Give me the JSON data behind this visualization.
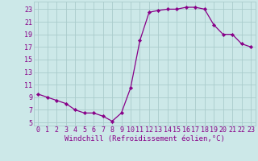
{
  "x": [
    0,
    1,
    2,
    3,
    4,
    5,
    6,
    7,
    8,
    9,
    10,
    11,
    12,
    13,
    14,
    15,
    16,
    17,
    18,
    19,
    20,
    21,
    22,
    23
  ],
  "y": [
    9.5,
    9.0,
    8.5,
    8.0,
    7.0,
    6.5,
    6.5,
    6.0,
    5.2,
    6.5,
    10.5,
    18.0,
    22.5,
    22.8,
    23.0,
    23.0,
    23.3,
    23.3,
    23.0,
    20.5,
    19.0,
    19.0,
    17.5,
    17.0
  ],
  "line_color": "#880088",
  "marker": "D",
  "marker_size": 2.2,
  "bg_color": "#cce8e8",
  "grid_color": "#aacccc",
  "xlabel": "Windchill (Refroidissement éolien,°C)",
  "ylabel_ticks": [
    5,
    7,
    9,
    11,
    13,
    15,
    17,
    19,
    21,
    23
  ],
  "xlabel_ticks": [
    0,
    1,
    2,
    3,
    4,
    5,
    6,
    7,
    8,
    9,
    10,
    11,
    12,
    13,
    14,
    15,
    16,
    17,
    18,
    19,
    20,
    21,
    22,
    23
  ],
  "xlim": [
    -0.5,
    23.5
  ],
  "ylim": [
    4.5,
    24.2
  ],
  "label_fontsize": 6.5,
  "tick_fontsize": 6.0
}
